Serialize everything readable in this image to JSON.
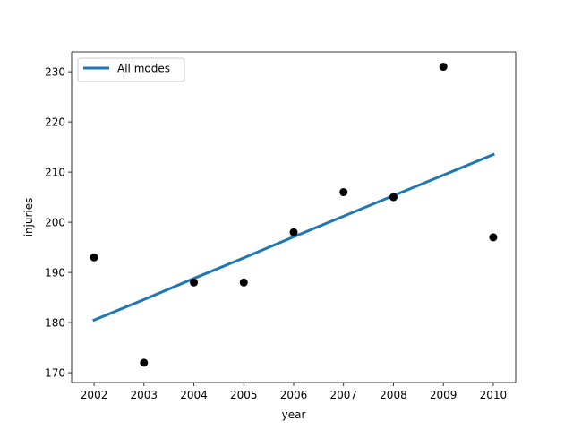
{
  "chart_data": {
    "type": "scatter",
    "title": "",
    "xlabel": "year",
    "ylabel": "injuries",
    "xlim": [
      2001.55,
      2010.45
    ],
    "ylim": [
      168.05,
      233.95
    ],
    "xticks": [
      2002,
      2003,
      2004,
      2005,
      2006,
      2007,
      2008,
      2009,
      2010
    ],
    "yticks": [
      170,
      180,
      190,
      200,
      210,
      220,
      230
    ],
    "grid": false,
    "legend": {
      "position": "top-left",
      "entries": [
        "All modes"
      ]
    },
    "colors": {
      "points": "#000000",
      "fit_line": "#1f77b4",
      "axes": "#000000"
    },
    "points": {
      "x": [
        2002,
        2003,
        2004,
        2005,
        2006,
        2007,
        2008,
        2009,
        2010
      ],
      "y": [
        193,
        172,
        188,
        188,
        198,
        206,
        205,
        231,
        197
      ]
    },
    "series": [
      {
        "name": "All modes",
        "type": "line",
        "x": [
          2002,
          2003,
          2004,
          2005,
          2006,
          2007,
          2008,
          2009,
          2010
        ],
        "y": [
          180.5,
          184.6,
          188.8,
          192.9,
          197.1,
          201.2,
          205.3,
          209.4,
          213.5
        ]
      }
    ]
  }
}
